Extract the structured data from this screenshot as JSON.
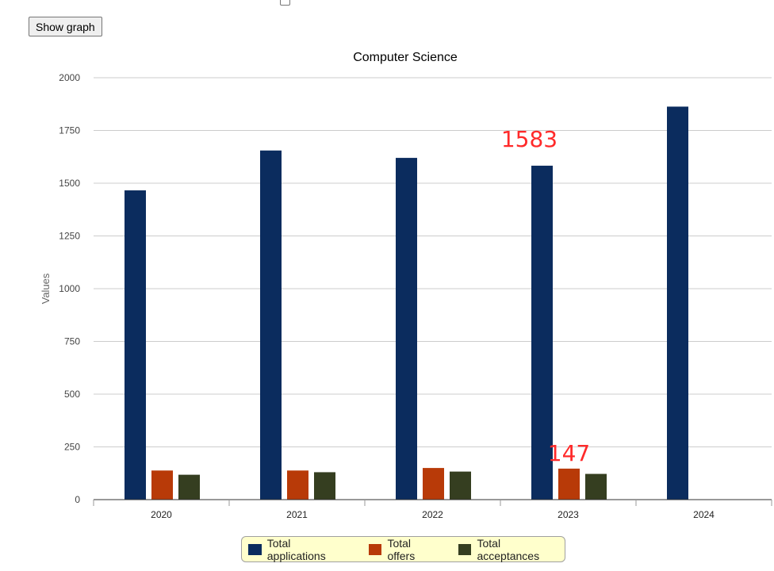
{
  "controls": {
    "show_graph_label": "Show graph"
  },
  "colors": {
    "applications": "#0b2c5e",
    "offers": "#b83a08",
    "acceptances": "#353e20",
    "gridline": "#cccccc",
    "annotation": "#ff2a2a",
    "legend_bg": "#ffffcc"
  },
  "chart_data": {
    "type": "bar",
    "title": "Computer Science",
    "xlabel": "",
    "ylabel": "Values",
    "ylim": [
      0,
      2000
    ],
    "yticks": [
      0,
      250,
      500,
      750,
      1000,
      1250,
      1500,
      1750,
      2000
    ],
    "categories": [
      "2020",
      "2021",
      "2022",
      "2023",
      "2024"
    ],
    "series": [
      {
        "name": "Total applications",
        "values": [
          1466,
          1655,
          1620,
          1583,
          1863
        ]
      },
      {
        "name": "Total offers",
        "values": [
          138,
          138,
          150,
          147,
          null
        ]
      },
      {
        "name": "Total acceptances",
        "values": [
          118,
          130,
          133,
          122,
          null
        ]
      }
    ],
    "grid": true,
    "legend_position": "bottom",
    "annotations": [
      {
        "text": "1583",
        "category": "2023",
        "series": "Total applications",
        "value": 1583
      },
      {
        "text": "147",
        "category": "2023",
        "series": "Total offers",
        "value": 147
      }
    ]
  }
}
